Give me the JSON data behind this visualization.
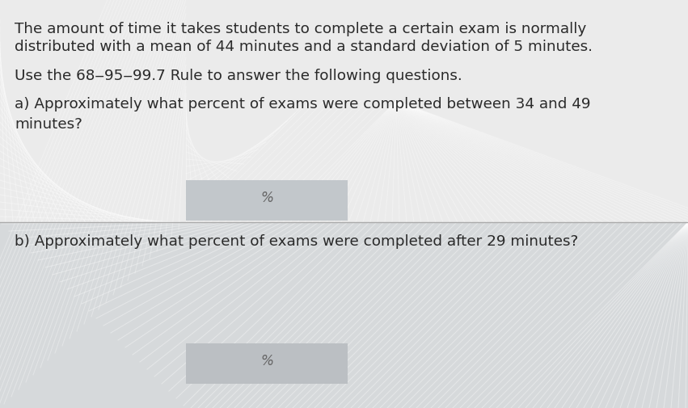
{
  "bg_color_top": "#e8e8e8",
  "bg_color_bottom": "#d4d4d4",
  "outer_bg": "#888888",
  "text_color": "#2a2a2a",
  "separator_color": "#bbbbbb",
  "line1": "The amount of time it takes students to complete a certain exam is normally",
  "line2": "distributed with a mean of 44 minutes and a standard deviation of 5 minutes.",
  "line3": "Use the 68‒95‒99.7 Rule to answer the following questions.",
  "line4": "a) Approximately what percent of exams were completed between 34 and 49",
  "line5": "minutes?",
  "line6": "b) Approximately what percent of exams were completed after 29 minutes?",
  "percent_symbol": "%",
  "font_size_main": 13.2,
  "input_box_color_a": "#c8cdd0",
  "input_box_color_b": "#bfc4c8"
}
